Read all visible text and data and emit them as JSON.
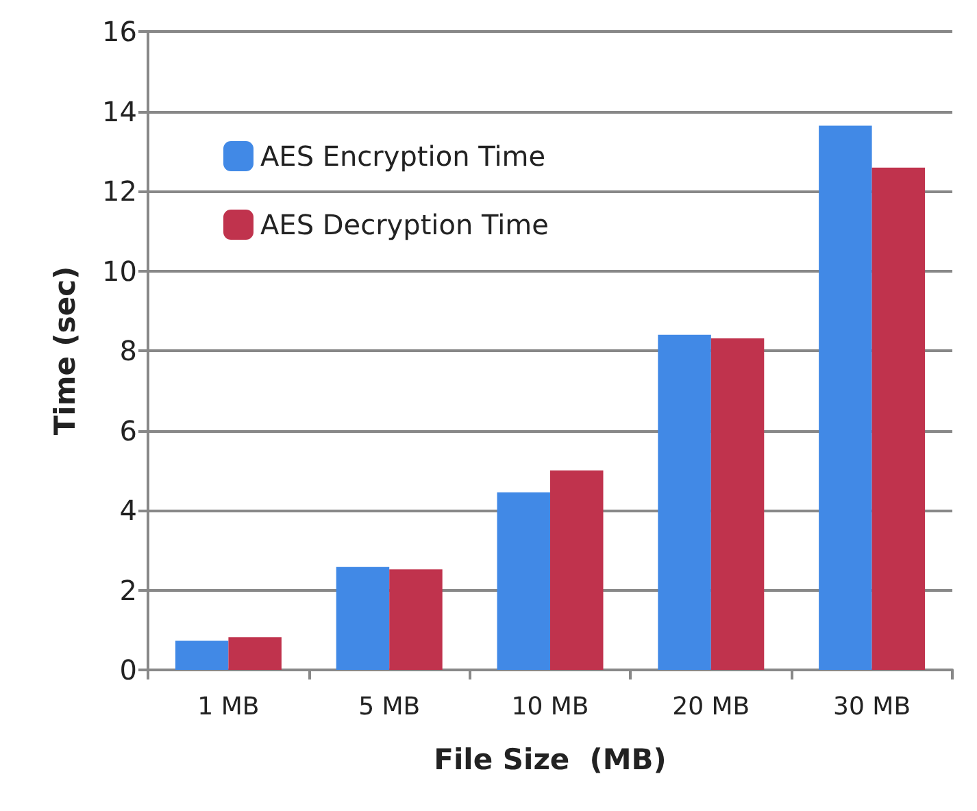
{
  "chart_data": {
    "type": "bar",
    "xlabel": "File Size  (MB)",
    "ylabel": "Time (sec)",
    "categories": [
      "1 MB",
      "5 MB",
      "10 MB",
      "20 MB",
      "30 MB"
    ],
    "series": [
      {
        "name": "AES Encryption Time",
        "color": "#4189e6",
        "values": [
          0.73,
          2.58,
          4.45,
          8.4,
          13.64
        ]
      },
      {
        "name": "AES Decryption Time",
        "color": "#c0334d",
        "values": [
          0.82,
          2.52,
          5.0,
          8.31,
          12.59
        ]
      }
    ],
    "ylim": [
      0,
      16
    ],
    "yticks": [
      0,
      2,
      4,
      6,
      8,
      10,
      12,
      14,
      16
    ],
    "grid": "y",
    "legend": "top left"
  }
}
